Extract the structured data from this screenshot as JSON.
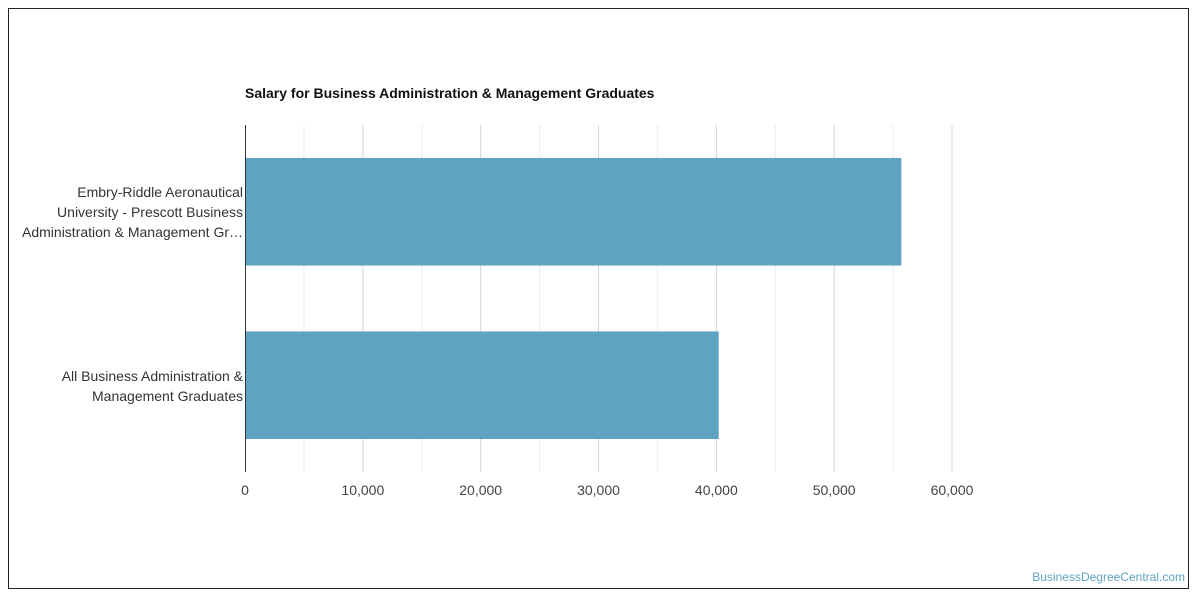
{
  "chart_data": {
    "type": "bar",
    "orientation": "horizontal",
    "title": "Salary for Business Administration & Management Graduates",
    "categories": [
      "Embry-Riddle Aeronautical\nUniversity - Prescott Business\nAdministration & Management Gr…",
      "All Business Administration &\nManagement Graduates"
    ],
    "values": [
      55700,
      40200
    ],
    "xlim": [
      0,
      60000
    ],
    "xticks": [
      0,
      10000,
      20000,
      30000,
      40000,
      50000,
      60000
    ],
    "xtick_labels": [
      "0",
      "10,000",
      "20,000",
      "30,000",
      "40,000",
      "50,000",
      "60,000"
    ],
    "grid": true,
    "bar_color": "#5ea3c2",
    "legend": "none"
  },
  "credit": "BusinessDegreeCentral.com"
}
